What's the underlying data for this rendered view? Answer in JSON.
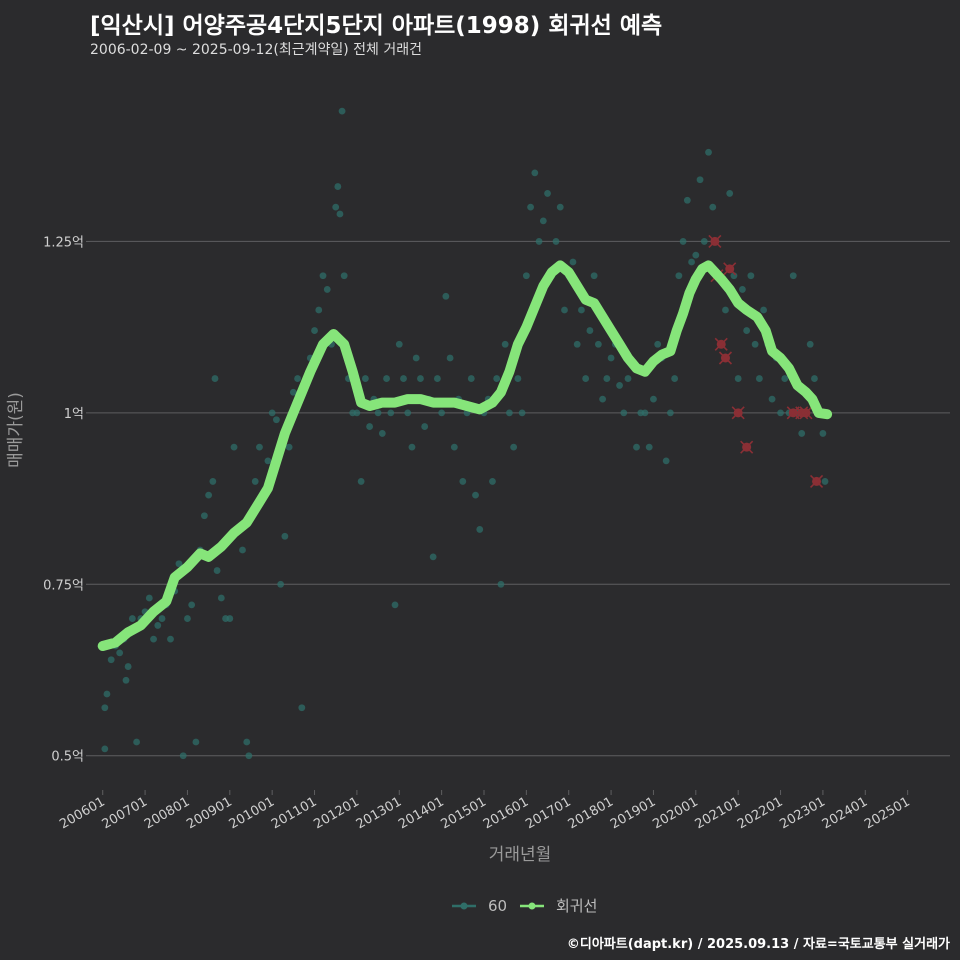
{
  "header": {
    "title": "[익산시] 어양주공4단지5단지 아파트(1998) 회귀선 예측",
    "subtitle": "2006-02-09 ~ 2025-09-12(최근계약일) 전체 거래건"
  },
  "footer": "©디아파트(dapt.kr) / 2025.09.13 / 자료=국토교통부 실거래가",
  "colors": {
    "background": "#2b2b2d",
    "grid": "#5e5e60",
    "scatter": "#2f6e68",
    "regression": "#86e57a",
    "cancelled": "#8a2f35"
  },
  "chart_data": {
    "type": "scatter",
    "title": "[익산시] 어양주공4단지5단지 아파트(1998) 회귀선 예측",
    "xlabel": "거래년월",
    "ylabel": "매매가(원)",
    "ylim": [
      0.45,
      1.5
    ],
    "xlim": [
      2005.7,
      2026.0
    ],
    "yticks": [
      {
        "value": 0.5,
        "label": "0.5억"
      },
      {
        "value": 0.75,
        "label": "0.75억"
      },
      {
        "value": 1.0,
        "label": "1억"
      },
      {
        "value": 1.25,
        "label": "1.25억"
      }
    ],
    "xticks": [
      {
        "value": 2006.0,
        "label": "200601"
      },
      {
        "value": 2007.0,
        "label": "200701"
      },
      {
        "value": 2008.0,
        "label": "200801"
      },
      {
        "value": 2009.0,
        "label": "200901"
      },
      {
        "value": 2010.0,
        "label": "201001"
      },
      {
        "value": 2011.0,
        "label": "201101"
      },
      {
        "value": 2012.0,
        "label": "201201"
      },
      {
        "value": 2013.0,
        "label": "201301"
      },
      {
        "value": 2014.0,
        "label": "201401"
      },
      {
        "value": 2015.0,
        "label": "201501"
      },
      {
        "value": 2016.0,
        "label": "201601"
      },
      {
        "value": 2017.0,
        "label": "201701"
      },
      {
        "value": 2018.0,
        "label": "201801"
      },
      {
        "value": 2019.0,
        "label": "201901"
      },
      {
        "value": 2020.0,
        "label": "202001"
      },
      {
        "value": 2021.0,
        "label": "202101"
      },
      {
        "value": 2022.0,
        "label": "202201"
      },
      {
        "value": 2023.0,
        "label": "202301"
      },
      {
        "value": 2024.0,
        "label": "202401"
      },
      {
        "value": 2025.0,
        "label": "202501"
      }
    ],
    "legend": [
      {
        "name": "60",
        "color": "#2f6e68"
      },
      {
        "name": "회귀선",
        "color": "#86e57a"
      }
    ],
    "regression": [
      [
        2006.0,
        0.66
      ],
      [
        2006.3,
        0.665
      ],
      [
        2006.6,
        0.68
      ],
      [
        2006.9,
        0.69
      ],
      [
        2007.2,
        0.71
      ],
      [
        2007.5,
        0.725
      ],
      [
        2007.7,
        0.76
      ],
      [
        2008.0,
        0.775
      ],
      [
        2008.3,
        0.795
      ],
      [
        2008.5,
        0.79
      ],
      [
        2008.8,
        0.805
      ],
      [
        2009.1,
        0.825
      ],
      [
        2009.4,
        0.84
      ],
      [
        2009.7,
        0.87
      ],
      [
        2009.9,
        0.89
      ],
      [
        2010.1,
        0.93
      ],
      [
        2010.3,
        0.97
      ],
      [
        2010.5,
        1.0
      ],
      [
        2010.7,
        1.03
      ],
      [
        2010.9,
        1.06
      ],
      [
        2011.2,
        1.1
      ],
      [
        2011.45,
        1.115
      ],
      [
        2011.7,
        1.1
      ],
      [
        2011.9,
        1.06
      ],
      [
        2012.1,
        1.015
      ],
      [
        2012.3,
        1.01
      ],
      [
        2012.6,
        1.015
      ],
      [
        2012.9,
        1.015
      ],
      [
        2013.2,
        1.02
      ],
      [
        2013.5,
        1.02
      ],
      [
        2013.8,
        1.015
      ],
      [
        2014.1,
        1.015
      ],
      [
        2014.3,
        1.015
      ],
      [
        2014.6,
        1.01
      ],
      [
        2014.9,
        1.005
      ],
      [
        2015.2,
        1.015
      ],
      [
        2015.4,
        1.03
      ],
      [
        2015.6,
        1.06
      ],
      [
        2015.8,
        1.1
      ],
      [
        2016.0,
        1.125
      ],
      [
        2016.2,
        1.155
      ],
      [
        2016.4,
        1.185
      ],
      [
        2016.6,
        1.205
      ],
      [
        2016.8,
        1.215
      ],
      [
        2017.0,
        1.205
      ],
      [
        2017.2,
        1.185
      ],
      [
        2017.4,
        1.165
      ],
      [
        2017.6,
        1.16
      ],
      [
        2017.8,
        1.14
      ],
      [
        2018.0,
        1.12
      ],
      [
        2018.2,
        1.1
      ],
      [
        2018.4,
        1.08
      ],
      [
        2018.6,
        1.065
      ],
      [
        2018.8,
        1.06
      ],
      [
        2019.0,
        1.075
      ],
      [
        2019.2,
        1.085
      ],
      [
        2019.4,
        1.09
      ],
      [
        2019.55,
        1.12
      ],
      [
        2019.7,
        1.145
      ],
      [
        2019.85,
        1.175
      ],
      [
        2020.0,
        1.195
      ],
      [
        2020.15,
        1.21
      ],
      [
        2020.3,
        1.215
      ],
      [
        2020.45,
        1.205
      ],
      [
        2020.6,
        1.195
      ],
      [
        2020.8,
        1.18
      ],
      [
        2021.0,
        1.16
      ],
      [
        2021.2,
        1.15
      ],
      [
        2021.45,
        1.14
      ],
      [
        2021.65,
        1.12
      ],
      [
        2021.8,
        1.09
      ],
      [
        2022.0,
        1.08
      ],
      [
        2022.2,
        1.065
      ],
      [
        2022.4,
        1.04
      ],
      [
        2022.6,
        1.03
      ],
      [
        2022.75,
        1.02
      ],
      [
        2022.9,
        1.0
      ],
      [
        2023.1,
        0.998
      ]
    ],
    "trades": [
      [
        2006.05,
        0.51
      ],
      [
        2006.05,
        0.57
      ],
      [
        2006.1,
        0.59
      ],
      [
        2006.2,
        0.64
      ],
      [
        2006.3,
        0.66
      ],
      [
        2006.4,
        0.65
      ],
      [
        2006.5,
        0.67
      ],
      [
        2006.55,
        0.61
      ],
      [
        2006.6,
        0.63
      ],
      [
        2006.7,
        0.7
      ],
      [
        2006.8,
        0.52
      ],
      [
        2006.9,
        0.7
      ],
      [
        2007.0,
        0.71
      ],
      [
        2007.1,
        0.73
      ],
      [
        2007.2,
        0.67
      ],
      [
        2007.3,
        0.69
      ],
      [
        2007.4,
        0.7
      ],
      [
        2007.5,
        0.72
      ],
      [
        2007.6,
        0.67
      ],
      [
        2007.7,
        0.74
      ],
      [
        2007.8,
        0.78
      ],
      [
        2007.9,
        0.5
      ],
      [
        2008.0,
        0.7
      ],
      [
        2008.1,
        0.72
      ],
      [
        2008.2,
        0.52
      ],
      [
        2008.3,
        0.8
      ],
      [
        2008.4,
        0.85
      ],
      [
        2008.5,
        0.88
      ],
      [
        2008.6,
        0.9
      ],
      [
        2008.65,
        1.05
      ],
      [
        2008.7,
        0.77
      ],
      [
        2008.8,
        0.73
      ],
      [
        2008.9,
        0.7
      ],
      [
        2009.0,
        0.7
      ],
      [
        2009.1,
        0.95
      ],
      [
        2009.2,
        0.83
      ],
      [
        2009.3,
        0.8
      ],
      [
        2009.4,
        0.52
      ],
      [
        2009.45,
        0.5
      ],
      [
        2009.5,
        0.85
      ],
      [
        2009.6,
        0.9
      ],
      [
        2009.7,
        0.95
      ],
      [
        2009.8,
        0.88
      ],
      [
        2009.9,
        0.93
      ],
      [
        2010.0,
        1.0
      ],
      [
        2010.1,
        0.99
      ],
      [
        2010.2,
        0.75
      ],
      [
        2010.3,
        0.82
      ],
      [
        2010.4,
        0.95
      ],
      [
        2010.5,
        1.03
      ],
      [
        2010.6,
        1.05
      ],
      [
        2010.7,
        0.57
      ],
      [
        2010.8,
        1.05
      ],
      [
        2010.9,
        1.08
      ],
      [
        2011.0,
        1.12
      ],
      [
        2011.1,
        1.15
      ],
      [
        2011.2,
        1.2
      ],
      [
        2011.3,
        1.18
      ],
      [
        2011.4,
        1.1
      ],
      [
        2011.5,
        1.3
      ],
      [
        2011.55,
        1.33
      ],
      [
        2011.6,
        1.29
      ],
      [
        2011.65,
        1.44
      ],
      [
        2011.7,
        1.2
      ],
      [
        2011.8,
        1.05
      ],
      [
        2011.9,
        1.0
      ],
      [
        2012.0,
        1.0
      ],
      [
        2012.1,
        0.9
      ],
      [
        2012.2,
        1.05
      ],
      [
        2012.3,
        0.98
      ],
      [
        2012.4,
        1.02
      ],
      [
        2012.5,
        1.0
      ],
      [
        2012.6,
        0.97
      ],
      [
        2012.7,
        1.05
      ],
      [
        2012.8,
        1.0
      ],
      [
        2012.9,
        0.72
      ],
      [
        2013.0,
        1.1
      ],
      [
        2013.1,
        1.05
      ],
      [
        2013.2,
        1.0
      ],
      [
        2013.3,
        0.95
      ],
      [
        2013.4,
        1.08
      ],
      [
        2013.5,
        1.05
      ],
      [
        2013.6,
        0.98
      ],
      [
        2013.7,
        1.02
      ],
      [
        2013.8,
        0.79
      ],
      [
        2013.9,
        1.05
      ],
      [
        2014.0,
        1.0
      ],
      [
        2014.1,
        1.17
      ],
      [
        2014.2,
        1.08
      ],
      [
        2014.3,
        0.95
      ],
      [
        2014.4,
        1.02
      ],
      [
        2014.5,
        0.9
      ],
      [
        2014.6,
        1.0
      ],
      [
        2014.7,
        1.05
      ],
      [
        2014.8,
        0.88
      ],
      [
        2014.9,
        0.83
      ],
      [
        2015.0,
        1.0
      ],
      [
        2015.1,
        1.02
      ],
      [
        2015.2,
        0.9
      ],
      [
        2015.3,
        1.05
      ],
      [
        2015.4,
        0.75
      ],
      [
        2015.5,
        1.1
      ],
      [
        2015.6,
        1.0
      ],
      [
        2015.7,
        0.95
      ],
      [
        2015.8,
        1.05
      ],
      [
        2015.9,
        1.0
      ],
      [
        2016.0,
        1.2
      ],
      [
        2016.1,
        1.3
      ],
      [
        2016.2,
        1.35
      ],
      [
        2016.3,
        1.25
      ],
      [
        2016.4,
        1.28
      ],
      [
        2016.5,
        1.32
      ],
      [
        2016.6,
        1.2
      ],
      [
        2016.7,
        1.25
      ],
      [
        2016.8,
        1.3
      ],
      [
        2016.9,
        1.15
      ],
      [
        2017.0,
        1.2
      ],
      [
        2017.1,
        1.22
      ],
      [
        2017.2,
        1.1
      ],
      [
        2017.3,
        1.15
      ],
      [
        2017.4,
        1.05
      ],
      [
        2017.5,
        1.12
      ],
      [
        2017.6,
        1.2
      ],
      [
        2017.7,
        1.1
      ],
      [
        2017.8,
        1.02
      ],
      [
        2017.9,
        1.05
      ],
      [
        2018.0,
        1.08
      ],
      [
        2018.1,
        1.1
      ],
      [
        2018.2,
        1.04
      ],
      [
        2018.3,
        1.0
      ],
      [
        2018.4,
        1.05
      ],
      [
        2018.5,
        1.07
      ],
      [
        2018.6,
        0.95
      ],
      [
        2018.7,
        1.0
      ],
      [
        2018.8,
        1.0
      ],
      [
        2018.9,
        0.95
      ],
      [
        2019.0,
        1.02
      ],
      [
        2019.1,
        1.1
      ],
      [
        2019.2,
        1.08
      ],
      [
        2019.3,
        0.93
      ],
      [
        2019.4,
        1.0
      ],
      [
        2019.5,
        1.05
      ],
      [
        2019.6,
        1.2
      ],
      [
        2019.7,
        1.25
      ],
      [
        2019.8,
        1.31
      ],
      [
        2019.9,
        1.22
      ],
      [
        2020.0,
        1.23
      ],
      [
        2020.1,
        1.34
      ],
      [
        2020.2,
        1.25
      ],
      [
        2020.3,
        1.38
      ],
      [
        2020.4,
        1.3
      ],
      [
        2020.5,
        1.2
      ],
      [
        2020.6,
        1.1
      ],
      [
        2020.7,
        1.15
      ],
      [
        2020.8,
        1.32
      ],
      [
        2020.9,
        1.2
      ],
      [
        2021.0,
        1.05
      ],
      [
        2021.1,
        1.18
      ],
      [
        2021.2,
        1.12
      ],
      [
        2021.3,
        1.2
      ],
      [
        2021.4,
        1.1
      ],
      [
        2021.5,
        1.05
      ],
      [
        2021.6,
        1.15
      ],
      [
        2021.7,
        1.1
      ],
      [
        2021.8,
        1.02
      ],
      [
        2021.9,
        1.08
      ],
      [
        2022.0,
        1.0
      ],
      [
        2022.1,
        1.05
      ],
      [
        2022.2,
        1.0
      ],
      [
        2022.3,
        1.2
      ],
      [
        2022.4,
        1.0
      ],
      [
        2022.5,
        0.97
      ],
      [
        2022.6,
        1.0
      ],
      [
        2022.7,
        1.1
      ],
      [
        2022.8,
        1.05
      ],
      [
        2022.9,
        1.0
      ],
      [
        2023.0,
        0.97
      ],
      [
        2023.05,
        0.9
      ]
    ],
    "cancelled": [
      [
        2020.45,
        1.25
      ],
      [
        2020.5,
        1.2
      ],
      [
        2020.6,
        1.1
      ],
      [
        2020.7,
        1.08
      ],
      [
        2020.8,
        1.21
      ],
      [
        2021.0,
        1.0
      ],
      [
        2021.2,
        0.95
      ],
      [
        2022.3,
        1.0
      ],
      [
        2022.5,
        1.0
      ],
      [
        2022.6,
        1.0
      ],
      [
        2022.85,
        0.9
      ]
    ]
  }
}
